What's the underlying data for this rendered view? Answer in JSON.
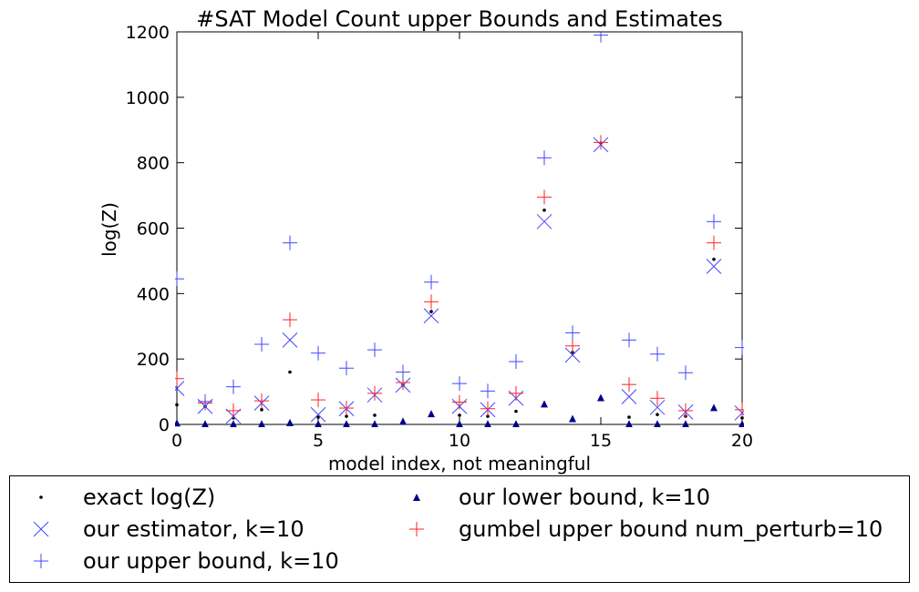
{
  "chart_data": {
    "type": "scatter",
    "title": "#SAT Model Count upper Bounds and Estimates",
    "xlabel": "model index, not meaningful",
    "ylabel": "log(Z)",
    "xlim": [
      0,
      20
    ],
    "ylim": [
      0,
      1200
    ],
    "xticks": [
      "0",
      "5",
      "10",
      "15",
      "20"
    ],
    "yticks": [
      "0",
      "200",
      "400",
      "600",
      "800",
      "1000",
      "1200"
    ],
    "grid": false,
    "legend_position": "below",
    "series": [
      {
        "name": "exact log(Z)",
        "marker": "dot",
        "color": "#000000",
        "x": [
          0,
          1,
          2,
          3,
          4,
          5,
          6,
          7,
          8,
          9,
          10,
          11,
          12,
          13,
          14,
          15,
          16,
          17,
          18,
          19,
          20
        ],
        "y": [
          60,
          55,
          20,
          45,
          160,
          22,
          25,
          28,
          120,
          345,
          28,
          25,
          40,
          655,
          220,
          860,
          22,
          30,
          25,
          505,
          20
        ]
      },
      {
        "name": "our lower bound, k=10",
        "marker": "triangle",
        "color": "#00008b",
        "x": [
          0,
          1,
          2,
          3,
          4,
          5,
          6,
          7,
          8,
          9,
          10,
          11,
          12,
          13,
          14,
          15,
          16,
          17,
          18,
          19,
          20
        ],
        "y": [
          5,
          2,
          2,
          2,
          6,
          2,
          2,
          2,
          10,
          33,
          2,
          2,
          2,
          63,
          18,
          82,
          2,
          2,
          2,
          52,
          2
        ]
      },
      {
        "name": "our estimator, k=10",
        "marker": "x",
        "color": "#4444ff",
        "x": [
          0,
          1,
          2,
          3,
          4,
          5,
          6,
          7,
          8,
          9,
          10,
          11,
          12,
          13,
          14,
          15,
          16,
          17,
          18,
          19,
          20
        ],
        "y": [
          110,
          55,
          25,
          65,
          258,
          30,
          48,
          90,
          120,
          332,
          55,
          45,
          80,
          620,
          212,
          855,
          85,
          52,
          38,
          483,
          35
        ]
      },
      {
        "name": "gumbel upper bound num_perturb=10",
        "marker": "plus",
        "color": "#ff2222",
        "x": [
          0,
          1,
          2,
          3,
          4,
          5,
          6,
          7,
          8,
          9,
          10,
          11,
          12,
          13,
          14,
          15,
          16,
          17,
          18,
          19,
          20
        ],
        "y": [
          140,
          65,
          42,
          72,
          320,
          75,
          50,
          95,
          128,
          375,
          68,
          48,
          95,
          695,
          240,
          862,
          122,
          80,
          42,
          555,
          45
        ]
      },
      {
        "name": "our upper bound, k=10",
        "marker": "plus",
        "color": "#4444ff",
        "x": [
          0,
          1,
          2,
          3,
          4,
          5,
          6,
          7,
          8,
          9,
          10,
          11,
          12,
          13,
          14,
          15,
          16,
          17,
          18,
          19,
          20
        ],
        "y": [
          445,
          70,
          115,
          245,
          555,
          218,
          172,
          228,
          160,
          435,
          125,
          102,
          192,
          815,
          280,
          1190,
          258,
          215,
          158,
          620,
          235
        ]
      }
    ]
  },
  "legend": {
    "item_0": "exact log(Z)",
    "item_1": "our estimator, k=10",
    "item_2": "our upper bound, k=10",
    "item_3": "our lower bound, k=10",
    "item_4": "gumbel upper bound num_perturb=10"
  }
}
